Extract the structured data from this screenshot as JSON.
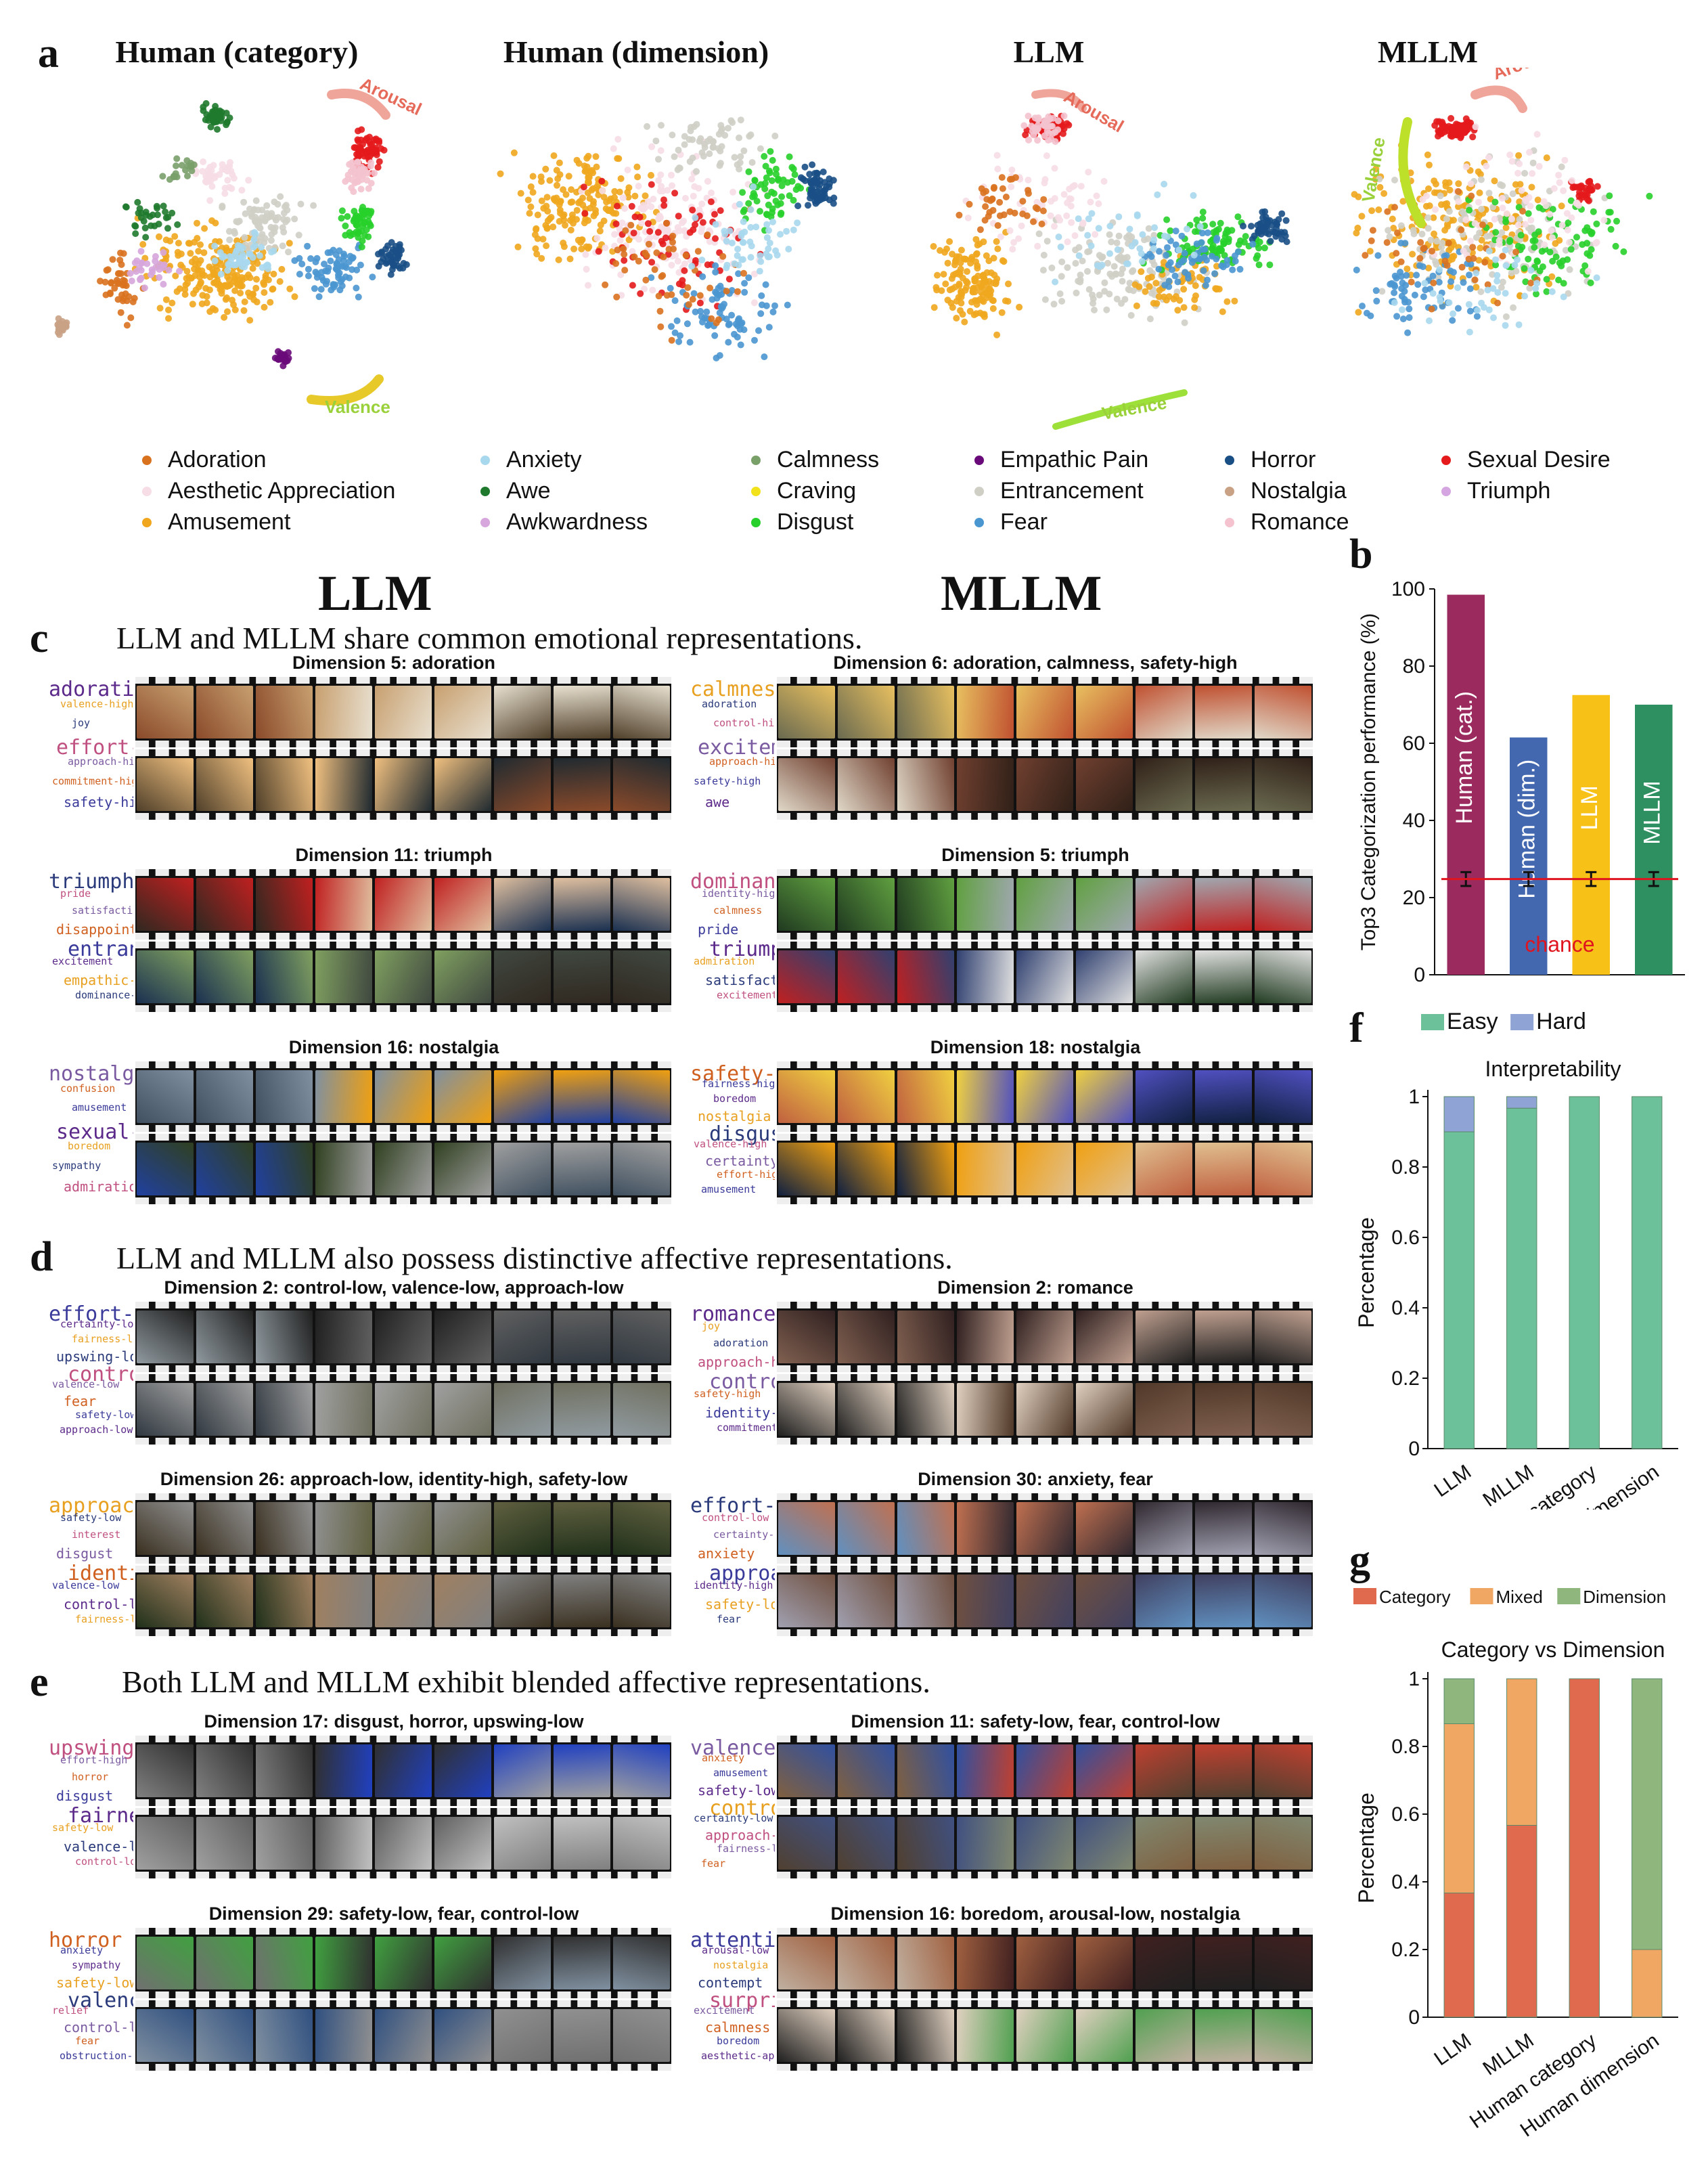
{
  "panel_letters": {
    "a": "a",
    "b": "b",
    "c": "c",
    "d": "d",
    "e": "e",
    "f": "f",
    "g": "g"
  },
  "tsne": {
    "titles": [
      "Human (category)",
      "Human (dimension)",
      "LLM",
      "MLLM"
    ],
    "arrow_labels": {
      "arousal": "Arousal",
      "valence": "Valence"
    }
  },
  "legend": [
    {
      "label": "Adoration",
      "color": "#d9721f"
    },
    {
      "label": "Aesthetic Appreciation",
      "color": "#f6dde6"
    },
    {
      "label": "Amusement",
      "color": "#f0a71e"
    },
    {
      "label": "Anxiety",
      "color": "#a8d8ee"
    },
    {
      "label": "Awe",
      "color": "#1f7a2e"
    },
    {
      "label": "Awkwardness",
      "color": "#d6a6dc"
    },
    {
      "label": "Calmness",
      "color": "#7aa06a"
    },
    {
      "label": "Craving",
      "color": "#f2e21c"
    },
    {
      "label": "Disgust",
      "color": "#27d02a"
    },
    {
      "label": "Empathic Pain",
      "color": "#6a0a7a"
    },
    {
      "label": "Entrancement",
      "color": "#cfcfc6"
    },
    {
      "label": "Fear",
      "color": "#4a96d0"
    },
    {
      "label": "Horror",
      "color": "#1a4f86"
    },
    {
      "label": "Nostalgia",
      "color": "#c9a184"
    },
    {
      "label": "Romance",
      "color": "#f4c3cf"
    },
    {
      "label": "Sexual Desire",
      "color": "#e41a1c"
    },
    {
      "label": "Triumph",
      "color": "#d4a5e0"
    }
  ],
  "headings": {
    "llm": "LLM",
    "mllm": "MLLM",
    "c": "LLM and MLLM share common emotional representations.",
    "d": "LLM and MLLM also possess distinctive affective representations.",
    "e": "Both LLM and MLLM exhibit blended affective representations."
  },
  "dimension_panels": [
    {
      "title": "Dimension 5: adoration",
      "words": [
        "adoration",
        "valence-high",
        "joy",
        "effort-low",
        "approach-high",
        "commitment-high",
        "safety-high"
      ]
    },
    {
      "title": "Dimension 6: adoration, calmness, safety-high",
      "words": [
        "calmness",
        "adoration",
        "control-high",
        "excitement",
        "approach-high",
        "safety-high",
        "awe"
      ]
    },
    {
      "title": "Dimension 11: triumph",
      "words": [
        "triumph",
        "pride",
        "satisfaction",
        "disappointment",
        "entrancement",
        "excitement",
        "empathic-pain",
        "dominance-high"
      ]
    },
    {
      "title": "Dimension 5: triumph",
      "words": [
        "dominance-high",
        "identity-high",
        "calmness",
        "pride",
        "triumph",
        "admiration",
        "satisfaction",
        "excitement"
      ]
    },
    {
      "title": "Dimension 16: nostalgia",
      "words": [
        "nostalgia",
        "confusion",
        "amusement",
        "sexual-desire",
        "boredom",
        "sympathy",
        "admiration"
      ]
    },
    {
      "title": "Dimension 18: nostalgia",
      "words": [
        "safety-high",
        "fairness-high",
        "boredom",
        "nostalgia",
        "disgust",
        "valence-high",
        "certainty-high",
        "effort-high",
        "amusement"
      ]
    },
    {
      "title": "Dimension 2: control-low, valence-low, approach-low",
      "words": [
        "effort-high",
        "certainty-low",
        "fairness-low",
        "upswing-low",
        "control-low",
        "valence-low",
        "fear",
        "safety-low",
        "approach-low"
      ]
    },
    {
      "title": "Dimension 2: romance",
      "words": [
        "romance",
        "joy",
        "adoration",
        "approach-high",
        "control-high",
        "safety-high",
        "identity-high",
        "commitment-high"
      ]
    },
    {
      "title": "Dimension 26: approach-low, identity-high, safety-low",
      "words": [
        "approach-low",
        "safety-low",
        "interest",
        "disgust",
        "identity-low",
        "valence-low",
        "control-low",
        "fairness-low"
      ]
    },
    {
      "title": "Dimension 30: anxiety, fear",
      "words": [
        "effort-high",
        "control-low",
        "certainty-low",
        "anxiety",
        "approach-low",
        "identity-high",
        "safety-low",
        "fear"
      ]
    },
    {
      "title": "Dimension 17: disgust, horror, upswing-low",
      "words": [
        "upswing-low",
        "effort-high",
        "horror",
        "disgust",
        "fairness-low",
        "safety-low",
        "valence-low",
        "control-low"
      ]
    },
    {
      "title": "Dimension 11: safety-low, fear, control-low",
      "words": [
        "valence-low",
        "anxiety",
        "amusement",
        "safety-low",
        "control-low",
        "certainty-low",
        "approach-low",
        "fairness-low",
        "fear"
      ]
    },
    {
      "title": "Dimension 29: safety-low, fear, control-low",
      "words": [
        "horror",
        "anxiety",
        "sympathy",
        "safety-low",
        "valence-low",
        "relief",
        "control-low",
        "fear",
        "obstruction-high"
      ]
    },
    {
      "title": "Dimension 16: boredom, arousal-low, nostalgia",
      "words": [
        "attention-low",
        "arousal-low",
        "nostalgia",
        "contempt",
        "surprise",
        "excitement",
        "calmness",
        "boredom",
        "aesthetic-appre"
      ]
    }
  ],
  "chart_data": [
    {
      "type": "bar",
      "title": "",
      "ylabel": "Top3 Categorization performance (%)",
      "xlabel": "",
      "ylim": [
        0,
        100
      ],
      "yticks": [
        0,
        20,
        40,
        60,
        80,
        100
      ],
      "categories": [
        "Human (cat.)",
        "Human (dim.)",
        "LLM",
        "MLLM"
      ],
      "values": [
        98.5,
        61.5,
        72.5,
        70
      ],
      "bar_colors": [
        "#9b2b5e",
        "#4468b0",
        "#f7c117",
        "#2e9060"
      ],
      "error_center": [
        24.8,
        24.8,
        24.8,
        24.8
      ],
      "error_halfwidth": [
        1.8,
        1.8,
        1.8,
        1.8
      ],
      "chance_level": 24.8,
      "chance_label": "chance"
    },
    {
      "type": "bar",
      "title": "Interpretability",
      "ylabel": "Percentage",
      "xlabel": "",
      "ylim": [
        0,
        1
      ],
      "yticks": [
        0,
        0.2,
        0.4,
        0.6,
        0.8,
        1
      ],
      "categories": [
        "LLM",
        "MLLM",
        "Human category",
        "Human dimension"
      ],
      "series": [
        {
          "name": "Easy",
          "color": "#6cc09a",
          "values": [
            0.9,
            0.967,
            1.0,
            1.0
          ]
        },
        {
          "name": "Hard",
          "color": "#8fa3d4",
          "values": [
            0.1,
            0.033,
            0.0,
            0.0
          ]
        }
      ],
      "stacked": true
    },
    {
      "type": "bar",
      "title": "Category vs Dimension",
      "ylabel": "Percentage",
      "xlabel": "",
      "ylim": [
        0,
        1
      ],
      "yticks": [
        0,
        0.2,
        0.4,
        0.6,
        0.8,
        1
      ],
      "categories": [
        "LLM",
        "MLLM",
        "Human category",
        "Human dimension"
      ],
      "series": [
        {
          "name": "Category",
          "color": "#e06a4e",
          "values": [
            0.367,
            0.567,
            1.0,
            0.0
          ]
        },
        {
          "name": "Mixed",
          "color": "#f0a763",
          "values": [
            0.5,
            0.433,
            0.0,
            0.2
          ]
        },
        {
          "name": "Dimension",
          "color": "#8fb77d",
          "values": [
            0.133,
            0.0,
            0.0,
            0.8
          ]
        }
      ],
      "stacked": true
    }
  ]
}
